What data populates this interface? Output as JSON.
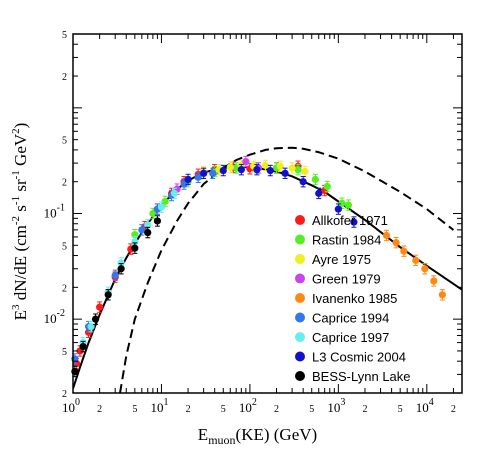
{
  "chart_data": {
    "type": "scatter",
    "x_scale": "log",
    "y_scale": "log",
    "xlim": [
      1,
      25000
    ],
    "ylim": [
      0.002,
      5
    ],
    "xlabel": {
      "main": "E",
      "sub": "muon",
      "rest": "(KE) (GeV)"
    },
    "ylabel": {
      "main": "E",
      "sup3": "3",
      "rest1": " dN/dE (cm",
      "sup_a": "-2",
      "rest2": " s",
      "sup_b": "-1",
      "rest3": " sr",
      "sup_c": "-1",
      "rest4": " GeV",
      "sup_d": "2",
      "rest5": ")"
    },
    "x_ticks": [
      {
        "v": 1,
        "base": "10",
        "exp": "0"
      },
      {
        "v": 10,
        "base": "10",
        "exp": "1"
      },
      {
        "v": 100,
        "base": "10",
        "exp": "2"
      },
      {
        "v": 1000,
        "base": "10",
        "exp": "3"
      },
      {
        "v": 10000,
        "base": "10",
        "exp": "4"
      }
    ],
    "x_minor_labels": [
      {
        "v": 2,
        "t": "2"
      },
      {
        "v": 5,
        "t": "5"
      },
      {
        "v": 20,
        "t": "2"
      },
      {
        "v": 50,
        "t": "5"
      },
      {
        "v": 200,
        "t": "2"
      },
      {
        "v": 500,
        "t": "5"
      },
      {
        "v": 2000,
        "t": "2"
      },
      {
        "v": 5000,
        "t": "5"
      },
      {
        "v": 20000,
        "t": "2"
      }
    ],
    "y_ticks": [
      {
        "v": 0.01,
        "base": "10",
        "exp": "-2"
      },
      {
        "v": 0.1,
        "base": "10",
        "exp": "-1"
      }
    ],
    "y_minor_labels": [
      {
        "v": 0.002,
        "t": "2"
      },
      {
        "v": 0.005,
        "t": "5"
      },
      {
        "v": 0.02,
        "t": "2"
      },
      {
        "v": 0.05,
        "t": "5"
      },
      {
        "v": 0.2,
        "t": "2"
      },
      {
        "v": 0.5,
        "t": "5"
      },
      {
        "v": 2,
        "t": "2"
      },
      {
        "v": 5,
        "t": "5"
      }
    ],
    "legend_position": "bottom-right",
    "series": [
      {
        "name": "Allkofer 1971",
        "color": "#ff1a1a",
        "points": [
          [
            1.1,
            0.0038
          ],
          [
            1.2,
            0.005
          ],
          [
            1.5,
            0.0075
          ],
          [
            2,
            0.013
          ],
          [
            3,
            0.025
          ],
          [
            4.5,
            0.046
          ],
          [
            6.5,
            0.075
          ],
          [
            9,
            0.11
          ],
          [
            13,
            0.155
          ],
          [
            18,
            0.2
          ],
          [
            26,
            0.235
          ],
          [
            40,
            0.26
          ],
          [
            65,
            0.275
          ],
          [
            100,
            0.265
          ],
          [
            200,
            0.27
          ],
          [
            350,
            0.28
          ],
          [
            700,
            0.165
          ]
        ]
      },
      {
        "name": "Rastin 1984",
        "color": "#55ee22",
        "points": [
          [
            5,
            0.063
          ],
          [
            8,
            0.1
          ],
          [
            11,
            0.13
          ],
          [
            20,
            0.2
          ],
          [
            40,
            0.25
          ],
          [
            70,
            0.27
          ],
          [
            120,
            0.27
          ],
          [
            200,
            0.27
          ],
          [
            350,
            0.26
          ],
          [
            550,
            0.21
          ],
          [
            750,
            0.18
          ],
          [
            1100,
            0.125
          ],
          [
            1300,
            0.12
          ]
        ]
      },
      {
        "name": "Ayre 1975",
        "color": "#eeee22",
        "points": [
          [
            30,
            0.25
          ],
          [
            45,
            0.26
          ],
          [
            60,
            0.275
          ],
          [
            80,
            0.285
          ],
          [
            110,
            0.28
          ],
          [
            150,
            0.285
          ],
          [
            220,
            0.28
          ],
          [
            300,
            0.27
          ],
          [
            420,
            0.25
          ]
        ]
      },
      {
        "name": "Green 1979",
        "color": "#cc44ee",
        "points": [
          [
            15,
            0.17
          ],
          [
            30,
            0.24
          ],
          [
            90,
            0.31
          ],
          [
            125,
            0.27
          ]
        ]
      },
      {
        "name": "Ivanenko 1985",
        "color": "#ff8811",
        "points": [
          [
            3500,
            0.062
          ],
          [
            4500,
            0.053
          ],
          [
            5500,
            0.044
          ],
          [
            7500,
            0.036
          ],
          [
            9500,
            0.03
          ],
          [
            12000,
            0.023
          ],
          [
            15000,
            0.017
          ]
        ]
      },
      {
        "name": "Caprice 1994",
        "color": "#3377ee",
        "points": [
          [
            1.05,
            0.0042
          ],
          [
            1.5,
            0.0085
          ],
          [
            3,
            0.026
          ],
          [
            6,
            0.07
          ],
          [
            9,
            0.11
          ],
          [
            13,
            0.148
          ],
          [
            18,
            0.19
          ],
          [
            26,
            0.22
          ],
          [
            38,
            0.24
          ]
        ]
      },
      {
        "name": "Caprice 1997",
        "color": "#66eeee",
        "points": [
          [
            1.3,
            0.006
          ],
          [
            1.6,
            0.0085
          ],
          [
            2.5,
            0.018
          ],
          [
            3.5,
            0.034
          ],
          [
            5,
            0.054
          ],
          [
            7,
            0.078
          ],
          [
            10,
            0.115
          ],
          [
            14,
            0.155
          ]
        ]
      },
      {
        "name": "L3 Cosmic 2004",
        "color": "#1111cc",
        "points": [
          [
            20,
            0.21
          ],
          [
            30,
            0.24
          ],
          [
            50,
            0.255
          ],
          [
            80,
            0.26
          ],
          [
            120,
            0.26
          ],
          [
            170,
            0.255
          ],
          [
            250,
            0.24
          ],
          [
            400,
            0.2
          ],
          [
            600,
            0.155
          ],
          [
            1000,
            0.11
          ],
          [
            1500,
            0.083
          ]
        ]
      },
      {
        "name": "BESS-Lynn Lake",
        "color": "#000000",
        "points": [
          [
            1.05,
            0.0032
          ],
          [
            1.3,
            0.0055
          ],
          [
            1.8,
            0.01
          ],
          [
            2.5,
            0.017
          ],
          [
            3.5,
            0.03
          ],
          [
            5,
            0.047
          ],
          [
            7,
            0.066
          ],
          [
            9,
            0.085
          ]
        ]
      }
    ],
    "curves": [
      {
        "style": "solid",
        "points": [
          [
            1,
            0.0022
          ],
          [
            1.2,
            0.0035
          ],
          [
            1.5,
            0.006
          ],
          [
            2,
            0.011
          ],
          [
            3,
            0.024
          ],
          [
            4,
            0.038
          ],
          [
            5,
            0.052
          ],
          [
            7,
            0.08
          ],
          [
            10,
            0.12
          ],
          [
            15,
            0.17
          ],
          [
            20,
            0.205
          ],
          [
            30,
            0.245
          ],
          [
            50,
            0.27
          ],
          [
            70,
            0.277
          ],
          [
            100,
            0.273
          ],
          [
            150,
            0.262
          ],
          [
            200,
            0.25
          ],
          [
            300,
            0.225
          ],
          [
            500,
            0.185
          ],
          [
            700,
            0.16
          ],
          [
            1000,
            0.13
          ],
          [
            2000,
            0.087
          ],
          [
            5000,
            0.048
          ],
          [
            10000,
            0.032
          ],
          [
            25000,
            0.019
          ]
        ]
      },
      {
        "style": "dashed",
        "points": [
          [
            3.4,
            0.002
          ],
          [
            4,
            0.0045
          ],
          [
            5,
            0.01
          ],
          [
            7,
            0.022
          ],
          [
            10,
            0.045
          ],
          [
            15,
            0.085
          ],
          [
            20,
            0.125
          ],
          [
            30,
            0.19
          ],
          [
            50,
            0.27
          ],
          [
            70,
            0.32
          ],
          [
            100,
            0.36
          ],
          [
            150,
            0.4
          ],
          [
            200,
            0.415
          ],
          [
            300,
            0.42
          ],
          [
            400,
            0.41
          ],
          [
            600,
            0.38
          ],
          [
            1000,
            0.33
          ],
          [
            2000,
            0.25
          ],
          [
            5000,
            0.16
          ],
          [
            10000,
            0.11
          ],
          [
            20000,
            0.07
          ]
        ]
      }
    ]
  }
}
